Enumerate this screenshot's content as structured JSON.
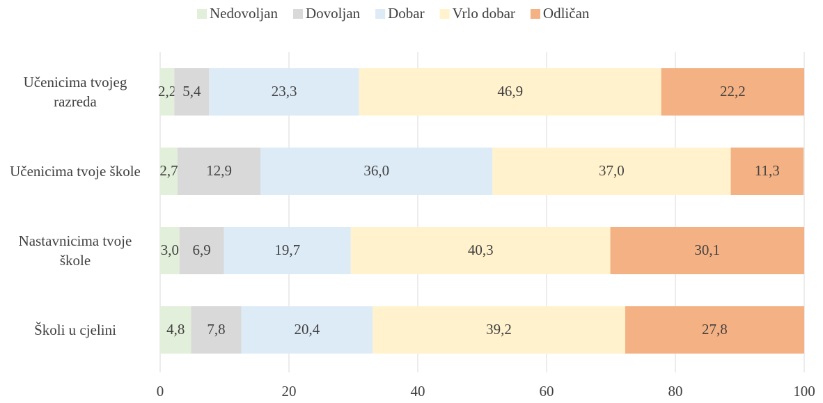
{
  "chart_data": {
    "type": "stacked-bar-horizontal",
    "categories": [
      "Učenicima tvojeg razreda",
      "Učenicima tvoje škole",
      "Nastavnicima tvoje škole",
      "Školi u cjelini"
    ],
    "series": [
      {
        "name": "Nedovoljan",
        "color": "#e2efda",
        "values": [
          2.2,
          2.7,
          3.0,
          4.8
        ],
        "value_labels": [
          "2,2",
          "2,7",
          "3,0",
          "4,8"
        ]
      },
      {
        "name": "Dovoljan",
        "color": "#d9d9d9",
        "values": [
          5.4,
          12.9,
          6.9,
          7.8
        ],
        "value_labels": [
          "5,4",
          "12,9",
          "6,9",
          "7,8"
        ]
      },
      {
        "name": "Dobar",
        "color": "#ddebf7",
        "values": [
          23.3,
          36.0,
          19.7,
          20.4
        ],
        "value_labels": [
          "23,3",
          "36,0",
          "19,7",
          "20,4"
        ]
      },
      {
        "name": "Vrlo dobar",
        "color": "#fff2cc",
        "values": [
          46.9,
          37.0,
          40.3,
          39.2
        ],
        "value_labels": [
          "46,9",
          "37,0",
          "40,3",
          "39,2"
        ]
      },
      {
        "name": "Odličan",
        "color": "#f4b183",
        "values": [
          22.2,
          11.3,
          30.1,
          27.8
        ],
        "value_labels": [
          "22,2",
          "11,3",
          "30,1",
          "27,8"
        ]
      }
    ],
    "xlim": [
      0,
      100
    ],
    "xticks": [
      0,
      20,
      40,
      60,
      80,
      100
    ],
    "grid": true,
    "legend": "top"
  }
}
